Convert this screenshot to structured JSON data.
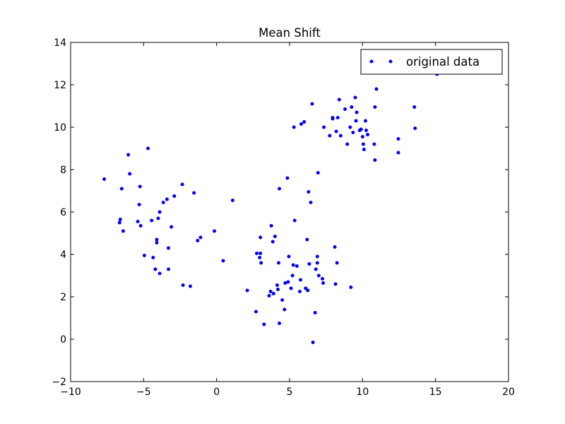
{
  "chart_data": {
    "type": "scatter",
    "title": "Mean Shift",
    "xlabel": "",
    "ylabel": "",
    "xlim": [
      -10,
      20
    ],
    "ylim": [
      -2,
      14
    ],
    "xticks": [
      -10,
      -5,
      0,
      5,
      10,
      15,
      20
    ],
    "yticks": [
      -2,
      0,
      2,
      4,
      6,
      8,
      10,
      12,
      14
    ],
    "xtick_labels": [
      "−10",
      "−5",
      "0",
      "5",
      "10",
      "15",
      "20"
    ],
    "ytick_labels": [
      "−2",
      "0",
      "2",
      "4",
      "6",
      "8",
      "10",
      "12",
      "14"
    ],
    "grid": false,
    "legend": {
      "placement": "top-right",
      "entries": [
        "original data"
      ]
    },
    "series": [
      {
        "name": "original data",
        "color": "#0000ff",
        "marker": "dot",
        "points": [
          [
            -7.7,
            7.55
          ],
          [
            -6.6,
            5.65
          ],
          [
            -6.65,
            5.5
          ],
          [
            -6.5,
            7.1
          ],
          [
            -6.4,
            5.1
          ],
          [
            -6.05,
            8.7
          ],
          [
            -5.95,
            7.8
          ],
          [
            -5.4,
            5.55
          ],
          [
            -5.3,
            6.35
          ],
          [
            -5.25,
            7.2
          ],
          [
            -5.2,
            5.35
          ],
          [
            -4.95,
            3.95
          ],
          [
            -4.7,
            9.0
          ],
          [
            -4.45,
            5.6
          ],
          [
            -4.35,
            3.85
          ],
          [
            -4.2,
            3.3
          ],
          [
            -4.1,
            4.55
          ],
          [
            -4.1,
            4.7
          ],
          [
            -4.0,
            5.7
          ],
          [
            -3.9,
            3.1
          ],
          [
            -3.9,
            6.0
          ],
          [
            -3.65,
            6.45
          ],
          [
            -3.4,
            6.6
          ],
          [
            -3.3,
            4.3
          ],
          [
            -3.3,
            3.3
          ],
          [
            -3.1,
            5.3
          ],
          [
            -2.9,
            6.75
          ],
          [
            -2.35,
            7.3
          ],
          [
            -2.3,
            2.55
          ],
          [
            -1.8,
            2.5
          ],
          [
            -1.55,
            6.9
          ],
          [
            -1.3,
            4.65
          ],
          [
            -1.1,
            4.8
          ],
          [
            -0.15,
            5.1
          ],
          [
            0.45,
            3.7
          ],
          [
            1.1,
            6.55
          ],
          [
            2.1,
            2.3
          ],
          [
            2.7,
            1.3
          ],
          [
            2.75,
            4.05
          ],
          [
            2.95,
            3.85
          ],
          [
            3.0,
            4.05
          ],
          [
            3.0,
            4.8
          ],
          [
            3.05,
            3.6
          ],
          [
            3.25,
            0.7
          ],
          [
            3.6,
            2.05
          ],
          [
            3.7,
            2.25
          ],
          [
            3.75,
            5.35
          ],
          [
            3.85,
            4.6
          ],
          [
            3.9,
            2.15
          ],
          [
            4.0,
            4.85
          ],
          [
            4.15,
            2.55
          ],
          [
            4.2,
            2.35
          ],
          [
            4.25,
            3.6
          ],
          [
            4.3,
            0.75
          ],
          [
            4.3,
            7.1
          ],
          [
            4.5,
            1.85
          ],
          [
            4.65,
            1.4
          ],
          [
            4.7,
            2.65
          ],
          [
            4.85,
            7.6
          ],
          [
            4.9,
            2.7
          ],
          [
            4.95,
            3.9
          ],
          [
            5.1,
            2.4
          ],
          [
            5.2,
            3.0
          ],
          [
            5.25,
            3.5
          ],
          [
            5.3,
            10.0
          ],
          [
            5.35,
            5.6
          ],
          [
            5.5,
            3.45
          ],
          [
            5.7,
            2.25
          ],
          [
            5.75,
            2.8
          ],
          [
            5.8,
            10.15
          ],
          [
            6.0,
            10.25
          ],
          [
            6.1,
            2.4
          ],
          [
            6.2,
            4.7
          ],
          [
            6.25,
            2.3
          ],
          [
            6.3,
            6.95
          ],
          [
            6.35,
            3.55
          ],
          [
            6.45,
            6.45
          ],
          [
            6.55,
            11.1
          ],
          [
            6.6,
            -0.15
          ],
          [
            6.75,
            1.25
          ],
          [
            6.8,
            3.3
          ],
          [
            6.9,
            3.6
          ],
          [
            6.9,
            3.9
          ],
          [
            6.95,
            7.85
          ],
          [
            7.0,
            3.0
          ],
          [
            7.25,
            2.85
          ],
          [
            7.3,
            2.65
          ],
          [
            7.35,
            10.0
          ],
          [
            7.75,
            9.6
          ],
          [
            7.95,
            10.45
          ],
          [
            7.95,
            10.4
          ],
          [
            8.1,
            4.35
          ],
          [
            8.15,
            2.6
          ],
          [
            8.2,
            9.8
          ],
          [
            8.25,
            3.6
          ],
          [
            8.3,
            10.45
          ],
          [
            8.4,
            11.3
          ],
          [
            8.5,
            9.6
          ],
          [
            8.8,
            10.85
          ],
          [
            8.95,
            9.2
          ],
          [
            9.15,
            10.0
          ],
          [
            9.2,
            2.45
          ],
          [
            9.25,
            10.95
          ],
          [
            9.35,
            9.75
          ],
          [
            9.5,
            11.4
          ],
          [
            9.55,
            10.3
          ],
          [
            9.6,
            10.7
          ],
          [
            9.8,
            9.85
          ],
          [
            9.9,
            9.9
          ],
          [
            10.0,
            9.55
          ],
          [
            10.05,
            9.2
          ],
          [
            10.1,
            8.95
          ],
          [
            10.2,
            10.3
          ],
          [
            10.25,
            9.85
          ],
          [
            10.35,
            9.65
          ],
          [
            10.8,
            9.2
          ],
          [
            10.85,
            10.95
          ],
          [
            10.85,
            8.45
          ],
          [
            10.95,
            11.8
          ],
          [
            12.45,
            9.45
          ],
          [
            12.45,
            8.8
          ],
          [
            13.55,
            10.95
          ],
          [
            13.6,
            9.95
          ],
          [
            15.1,
            12.5
          ]
        ]
      }
    ]
  }
}
